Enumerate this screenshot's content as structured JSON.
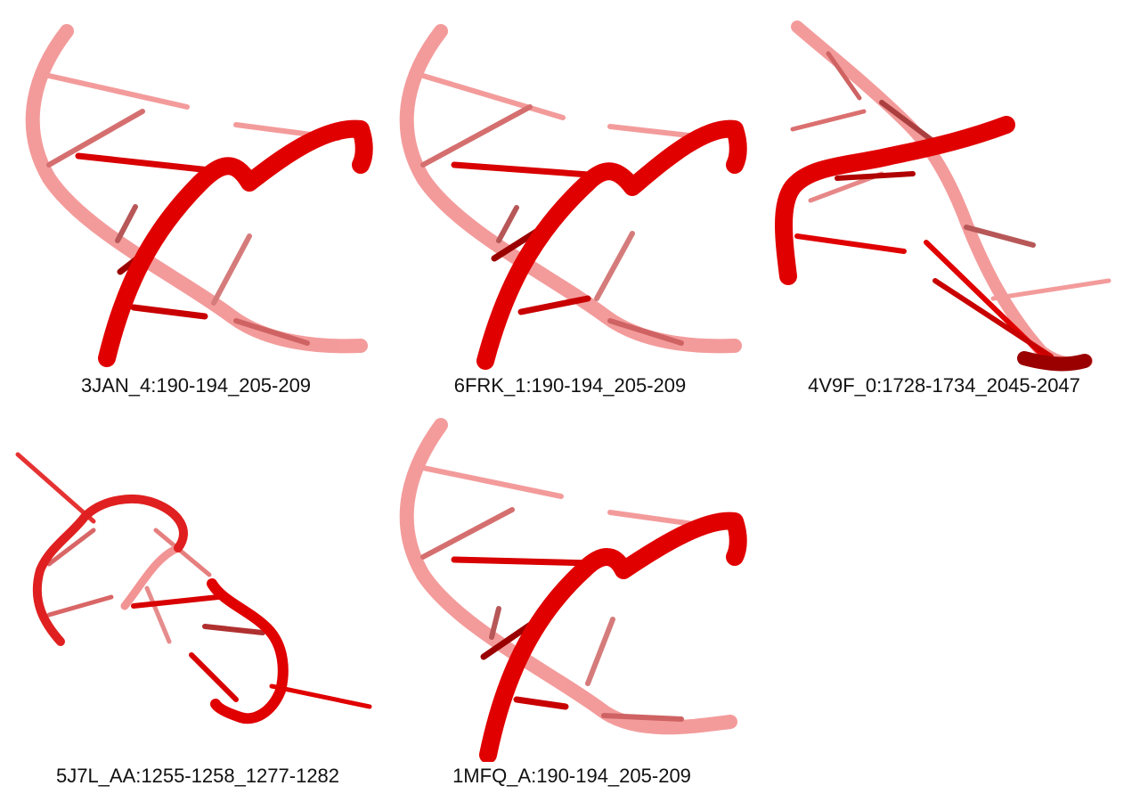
{
  "colors": {
    "strand_front": "#e00000",
    "strand_back": "#f07a7a",
    "strand_dark": "#9a0000",
    "background": "#ffffff"
  },
  "panels": [
    {
      "id": "p1",
      "label": "3JAN_4:190-194_205-209",
      "shape": "helix"
    },
    {
      "id": "p2",
      "label": "6FRK_1:190-194_205-209",
      "shape": "helix"
    },
    {
      "id": "p3",
      "label": "4V9F_0:1728-1734_2045-2047",
      "shape": "crossing"
    },
    {
      "id": "p4",
      "label": "5J7L_AA:1255-1258_1277-1282",
      "shape": "loop"
    },
    {
      "id": "p5",
      "label": "1MFQ_A:190-194_205-209",
      "shape": "helix"
    }
  ]
}
